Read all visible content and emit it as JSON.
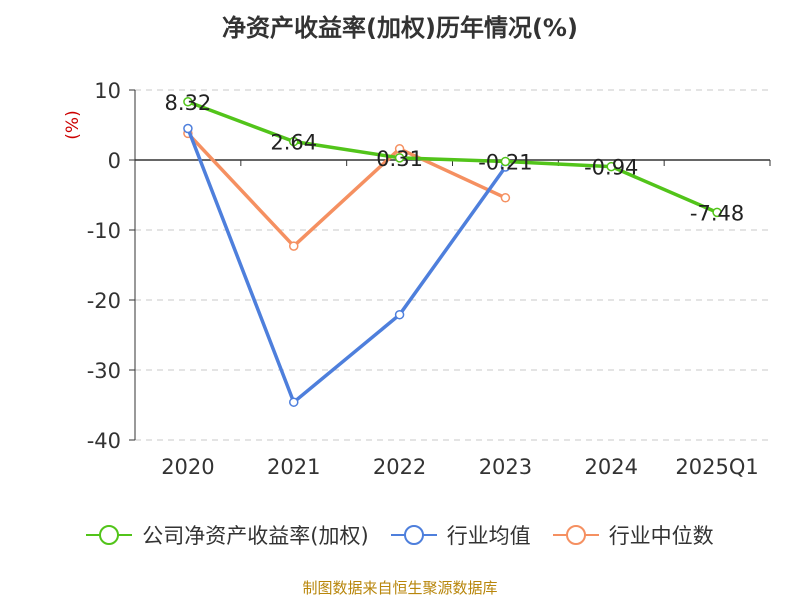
{
  "title": "净资产收益率(加权)历年情况(%)",
  "source": "制图数据来自恒生聚源数据库",
  "chart_data": {
    "type": "line",
    "title": "净资产收益率(加权)历年情况(%)",
    "ylabel": "(%)",
    "xlabel": "",
    "categories": [
      "2020",
      "2021",
      "2022",
      "2023",
      "2024",
      "2025Q1"
    ],
    "ylim": [
      -40,
      10
    ],
    "yticks": [
      10,
      0,
      -10,
      -20,
      -30,
      -40
    ],
    "grid": true,
    "legend_position": "bottom",
    "series": [
      {
        "name": "公司净资产收益率(加权)",
        "color": "#52c41a",
        "values": [
          8.32,
          2.64,
          0.31,
          -0.21,
          -0.94,
          -7.48
        ],
        "labels": [
          "8.32",
          "2.64",
          "0.31",
          "-0.21",
          "-0.94",
          "-7.48"
        ]
      },
      {
        "name": "行业均值",
        "color": "#4e7fdc",
        "values": [
          4.5,
          -34.6,
          -22.1,
          -1.0,
          null,
          null
        ]
      },
      {
        "name": "行业中位数",
        "color": "#f59061",
        "values": [
          3.8,
          -12.3,
          1.6,
          -5.4,
          null,
          null
        ]
      }
    ]
  }
}
